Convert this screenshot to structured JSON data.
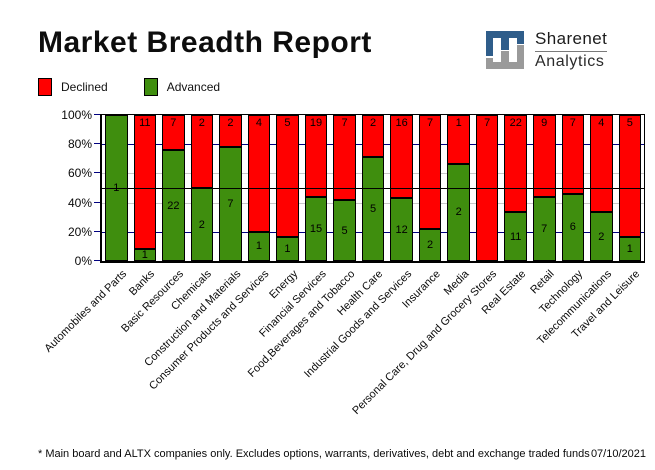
{
  "title": "Market Breadth Report",
  "logo": {
    "line1": "Sharenet",
    "line2": "Analytics",
    "mark_blue": "#2f5d8a",
    "mark_gray": "#9a9a9a"
  },
  "legend": {
    "items": [
      {
        "label": "Declined",
        "color": "#ff0000"
      },
      {
        "label": "Advanced",
        "color": "#3f8e0e"
      }
    ]
  },
  "footer": {
    "note": "* Main board and ALTX companies only. Excludes options, warrants, derivatives, debt and exchange traded funds",
    "date": "07/10/2021"
  },
  "chart_data": {
    "type": "bar",
    "variant": "stacked-100-percent",
    "title": "Market Breadth Report",
    "categories": [
      "Automobiles and Parts",
      "Banks",
      "Basic Resources",
      "Chemicals",
      "Construction and Materials",
      "Consumer Products and Services",
      "Energy",
      "Financial Services",
      "Food,Beverages and Tobacco",
      "Health Care",
      "Industrial Goods and Services",
      "Insurance",
      "Media",
      "Personal Care, Drug and Grocery Stores",
      "Real Estate",
      "Retail",
      "Technology",
      "Telecommunications",
      "Travel and Leisure"
    ],
    "series": [
      {
        "name": "Declined",
        "color": "#ff0000",
        "values": [
          0,
          11,
          7,
          2,
          2,
          4,
          5,
          19,
          7,
          2,
          16,
          7,
          1,
          7,
          22,
          9,
          7,
          4,
          5
        ]
      },
      {
        "name": "Advanced",
        "color": "#3f8e0e",
        "values": [
          1,
          1,
          22,
          2,
          7,
          1,
          1,
          15,
          5,
          5,
          12,
          2,
          2,
          0,
          11,
          7,
          6,
          2,
          1
        ]
      }
    ],
    "ylim": [
      0,
      100
    ],
    "yticks": [
      "0%",
      "20%",
      "40%",
      "60%",
      "80%",
      "100%"
    ],
    "grid": [
      {
        "pct": 20,
        "color": "#000080",
        "over_bars": false
      },
      {
        "pct": 40,
        "color": "#c8c8c8",
        "over_bars": false
      },
      {
        "pct": 60,
        "color": "#c8c8c8",
        "over_bars": false
      },
      {
        "pct": 80,
        "color": "#000080",
        "over_bars": false
      },
      {
        "pct": 50,
        "color": "#000000",
        "over_bars": true
      }
    ],
    "axis_tick_color": "#000080",
    "legend_position": "top-left",
    "x_label_rotation_deg": 45
  }
}
